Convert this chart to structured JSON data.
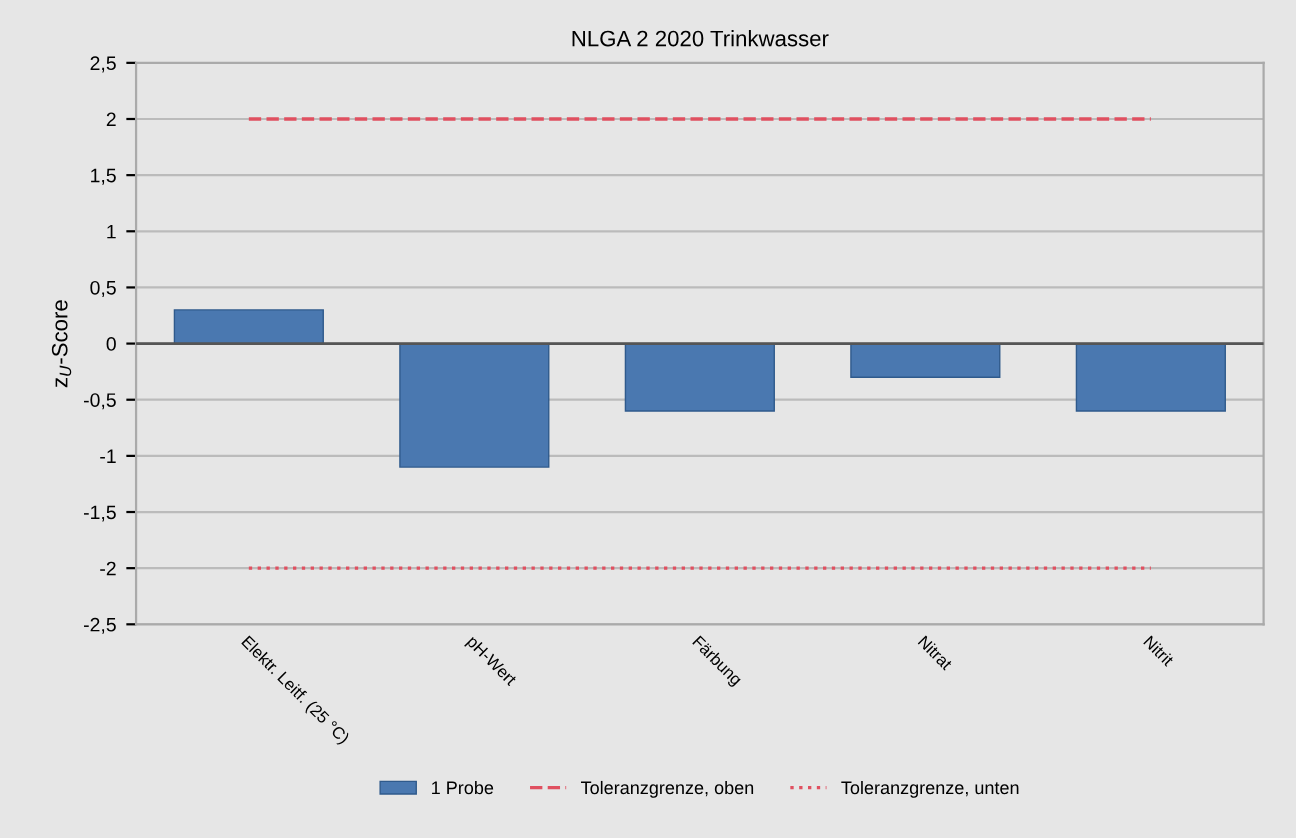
{
  "chart_data": {
    "type": "bar",
    "title": "NLGA 2 2020 Trinkwasser",
    "ylabel": "z$_{U}$-Score",
    "categories": [
      "Elektr. Leitf. (25 °C)",
      "pH-Wert",
      "Färbung",
      "Nitrat",
      "Nitrit"
    ],
    "series": [
      {
        "name": "1 Probe",
        "color": "#4a78b0",
        "values": [
          0.3,
          -1.1,
          -0.6,
          -0.3,
          -0.6
        ]
      },
      {
        "name": "Toleranzgrenze, oben",
        "type": "line",
        "line_style": "dashed",
        "color": "#e05060",
        "values": [
          2,
          2,
          2,
          2,
          2
        ]
      },
      {
        "name": "Toleranzgrenze, unten",
        "type": "line",
        "line_style": "dotted",
        "color": "#e05060",
        "values": [
          -2,
          -2,
          -2,
          -2,
          -2
        ]
      }
    ],
    "ylim": [
      -2.5,
      2.5
    ],
    "yticks": [
      {
        "value": -2.5,
        "label": "-2,5"
      },
      -2,
      {
        "value": -1.5,
        "label": "-1,5"
      },
      -1,
      {
        "value": -0.5,
        "label": "-0,5"
      },
      0,
      {
        "value": 0.5,
        "label": "0,5"
      },
      1,
      {
        "value": 1.5,
        "label": "1,5"
      },
      2,
      {
        "value": 2.5,
        "label": "2,5"
      }
    ],
    "grid": "y",
    "legend": "bottom"
  }
}
